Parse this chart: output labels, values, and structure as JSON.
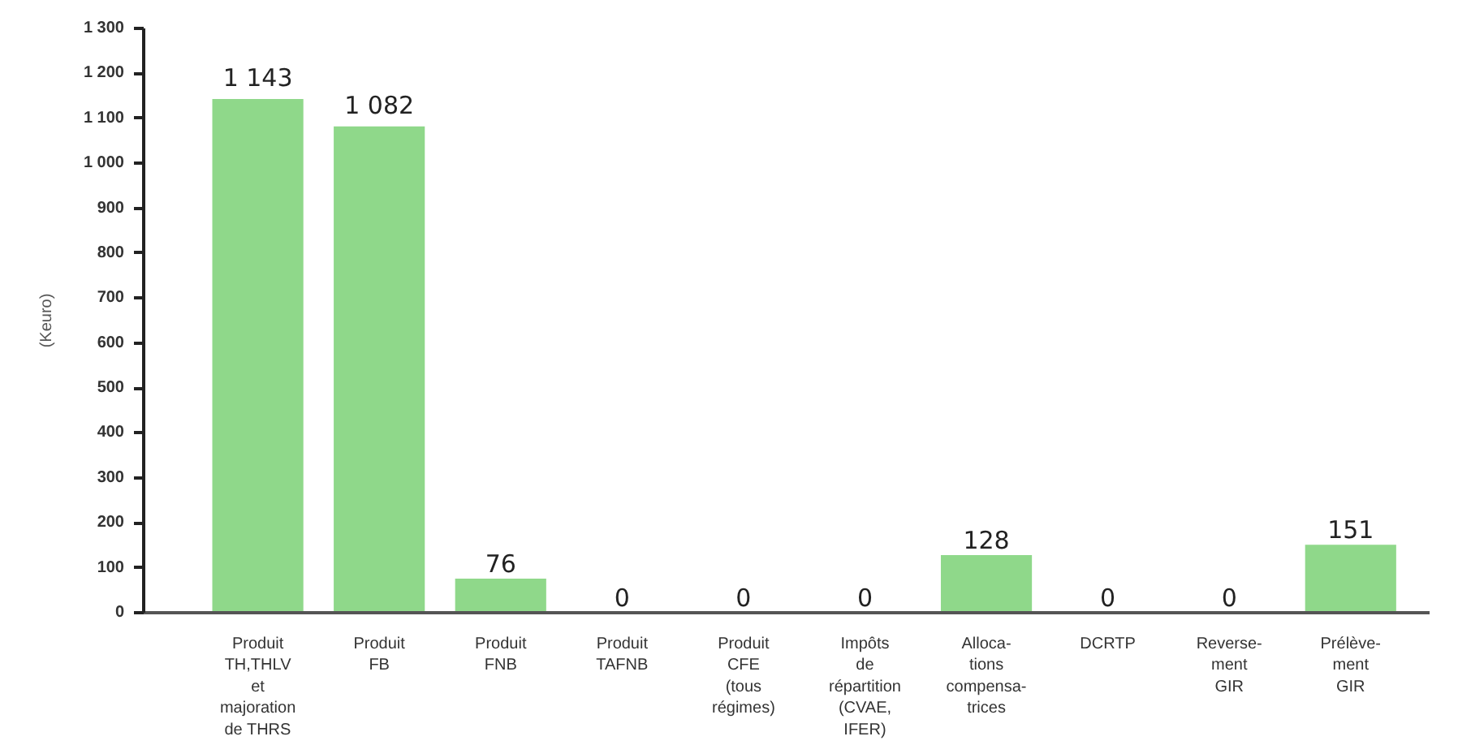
{
  "chart_data": {
    "type": "bar",
    "ylabel": "(Keuro)",
    "categories": [
      "Produit\nTH,THLV\net\nmajoration\nde THRS",
      "Produit\nFB",
      "Produit\nFNB",
      "Produit\nTAFNB",
      "Produit\nCFE\n(tous\nrégimes)",
      "Impôts\nde\nrépartition\n(CVAE,\nIFER)",
      "Alloca-\ntions\ncompensa-\ntrices",
      "DCRTP",
      "Reverse-\nment\nGIR",
      "Prélève-\nment\nGIR"
    ],
    "values": [
      1143,
      1082,
      76,
      0,
      0,
      0,
      128,
      0,
      0,
      151
    ],
    "value_labels": [
      "1 143",
      "1 082",
      "76",
      "0",
      "0",
      "0",
      "128",
      "0",
      "0",
      "151"
    ],
    "color": "#8fd88a",
    "ylim": [
      0,
      1300
    ],
    "yticks": [
      0,
      100,
      200,
      300,
      400,
      500,
      600,
      700,
      800,
      900,
      {
        "value": 1000,
        "label": "1 000"
      },
      {
        "value": 1100,
        "label": "1 100"
      },
      {
        "value": 1200,
        "label": "1 200"
      },
      {
        "value": 1300,
        "label": "1 300"
      }
    ]
  }
}
